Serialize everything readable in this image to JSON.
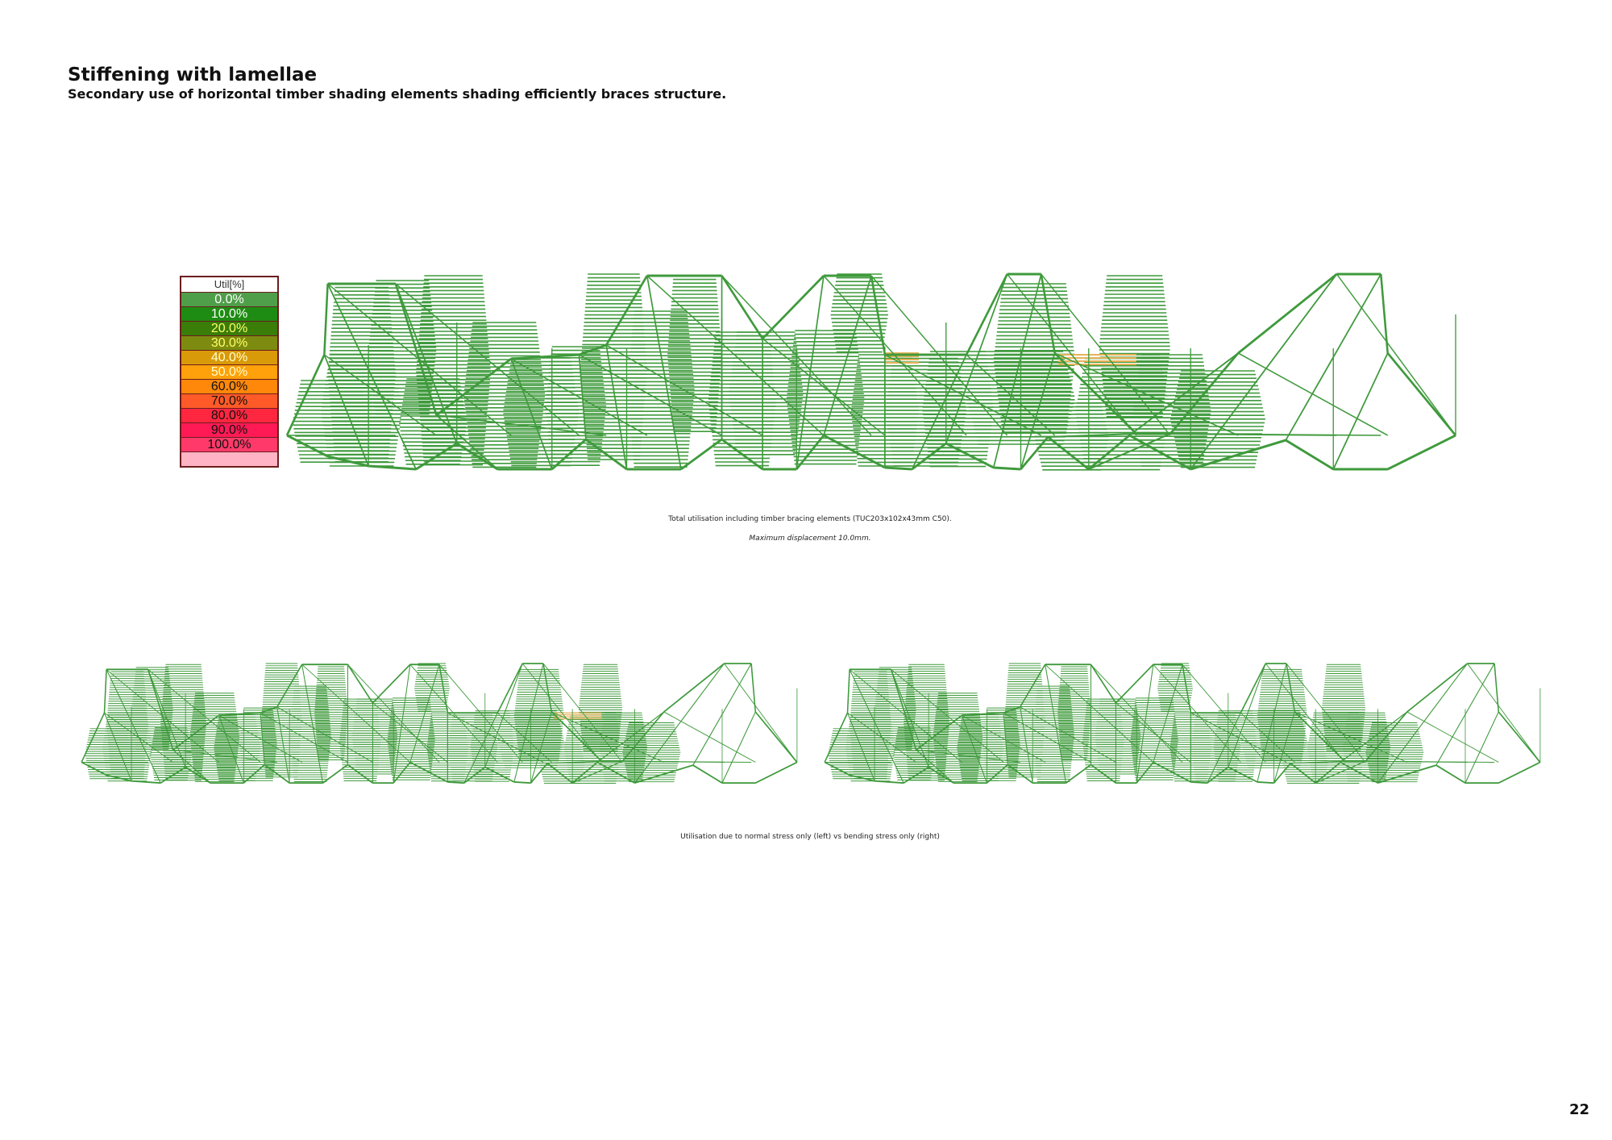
{
  "title": "Stiffening with lamellae",
  "subtitle": "Secondary use of horizontal timber shading elements shading efficiently braces structure.",
  "legend": {
    "header": "Util[%]",
    "items": [
      {
        "label": "0.0%",
        "color": "#4f9e49",
        "text_color": "#ffffff"
      },
      {
        "label": "10.0%",
        "color": "#1e8c13",
        "text_color": "#ffffff"
      },
      {
        "label": "20.0%",
        "color": "#3a7d09",
        "text_color": "#ffff66"
      },
      {
        "label": "30.0%",
        "color": "#7d8c10",
        "text_color": "#ffff66"
      },
      {
        "label": "40.0%",
        "color": "#d99a0a",
        "text_color": "#ffffcc"
      },
      {
        "label": "50.0%",
        "color": "#ffa10a",
        "text_color": "#ffffcc"
      },
      {
        "label": "60.0%",
        "color": "#ff870a",
        "text_color": "#111111"
      },
      {
        "label": "70.0%",
        "color": "#ff5a28",
        "text_color": "#111111"
      },
      {
        "label": "80.0%",
        "color": "#ff2640",
        "text_color": "#111111"
      },
      {
        "label": "90.0%",
        "color": "#ff1a55",
        "text_color": "#111111"
      },
      {
        "label": "100.0%",
        "color": "#ff3a6a",
        "text_color": "#111111"
      },
      {
        "label": "",
        "color": "#ffb3c4",
        "text_color": "#111111"
      }
    ]
  },
  "colors": {
    "member": "#3f9a3c",
    "member_fill": "#a9d3a4",
    "highlight": "#e8b25a"
  },
  "captions": {
    "main": "Total utilisation including timber bracing elements (TUC203x102x43mm C50).",
    "displacement": "Maximum displacement 10.0mm.",
    "comparison": "Utilisation due to normal stress only (left) vs bending stress only (right)"
  },
  "page_number": "22"
}
